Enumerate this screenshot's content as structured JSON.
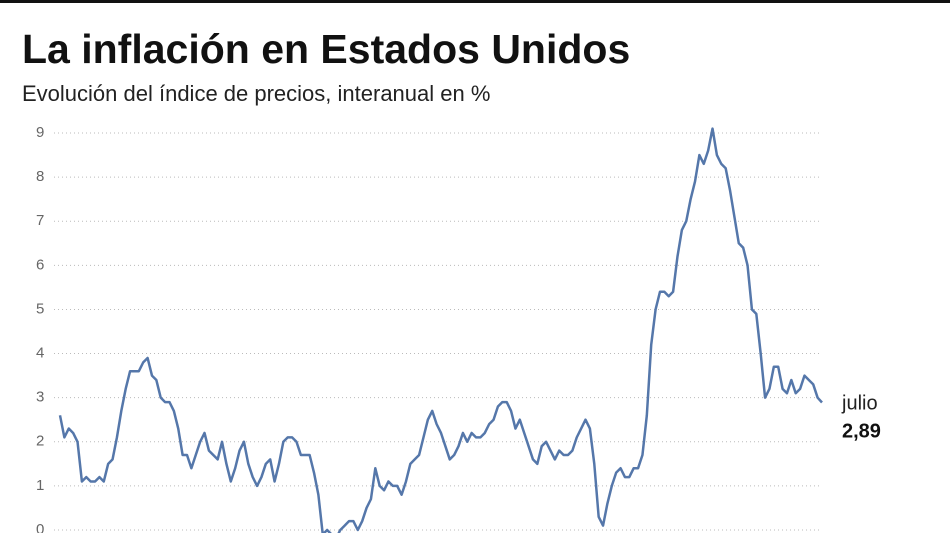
{
  "chart_data": {
    "type": "line",
    "title": "La inflación en Estados Unidos",
    "subtitle": "Evolución del índice de precios, interanual en %",
    "series": [
      {
        "color": "#5577aa",
        "values": [
          2.6,
          2.1,
          2.3,
          2.2,
          2.0,
          1.1,
          1.2,
          1.1,
          1.1,
          1.2,
          1.1,
          1.5,
          1.6,
          2.1,
          2.7,
          3.2,
          3.6,
          3.6,
          3.6,
          3.8,
          3.9,
          3.5,
          3.4,
          3.0,
          2.9,
          2.9,
          2.7,
          2.3,
          1.7,
          1.7,
          1.4,
          1.7,
          2.0,
          2.2,
          1.8,
          1.7,
          1.6,
          2.0,
          1.5,
          1.1,
          1.4,
          1.8,
          2.0,
          1.5,
          1.2,
          1.0,
          1.2,
          1.5,
          1.6,
          1.1,
          1.5,
          2.0,
          2.1,
          2.1,
          2.0,
          1.7,
          1.7,
          1.7,
          1.3,
          0.8,
          -0.1,
          0.0,
          -0.1,
          -0.2,
          0.0,
          0.1,
          0.2,
          0.2,
          0.0,
          0.2,
          0.5,
          0.7,
          1.4,
          1.0,
          0.9,
          1.1,
          1.0,
          1.0,
          0.8,
          1.1,
          1.5,
          1.6,
          1.7,
          2.1,
          2.5,
          2.7,
          2.4,
          2.2,
          1.9,
          1.6,
          1.7,
          1.9,
          2.2,
          2.0,
          2.2,
          2.1,
          2.1,
          2.2,
          2.4,
          2.5,
          2.8,
          2.9,
          2.9,
          2.7,
          2.3,
          2.5,
          2.2,
          1.9,
          1.6,
          1.5,
          1.9,
          2.0,
          1.8,
          1.6,
          1.8,
          1.7,
          1.7,
          1.8,
          2.1,
          2.3,
          2.5,
          2.3,
          1.5,
          0.3,
          0.1,
          0.6,
          1.0,
          1.3,
          1.4,
          1.2,
          1.2,
          1.4,
          1.4,
          1.7,
          2.6,
          4.2,
          5.0,
          5.4,
          5.4,
          5.3,
          5.4,
          6.2,
          6.8,
          7.0,
          7.5,
          7.9,
          8.5,
          8.3,
          8.6,
          9.1,
          8.5,
          8.3,
          8.2,
          7.7,
          7.1,
          6.5,
          6.4,
          6.0,
          5.0,
          4.9,
          4.0,
          3.0,
          3.2,
          3.7,
          3.7,
          3.2,
          3.1,
          3.4,
          3.1,
          3.2,
          3.5,
          3.4,
          3.3,
          3.0,
          2.89
        ]
      }
    ],
    "end_caption": "julio",
    "end_value_label": "2,89",
    "ylim": [
      0,
      9
    ],
    "yticks": [
      0,
      1,
      2,
      3,
      4,
      5,
      6,
      7,
      8,
      9
    ],
    "grid": true
  }
}
